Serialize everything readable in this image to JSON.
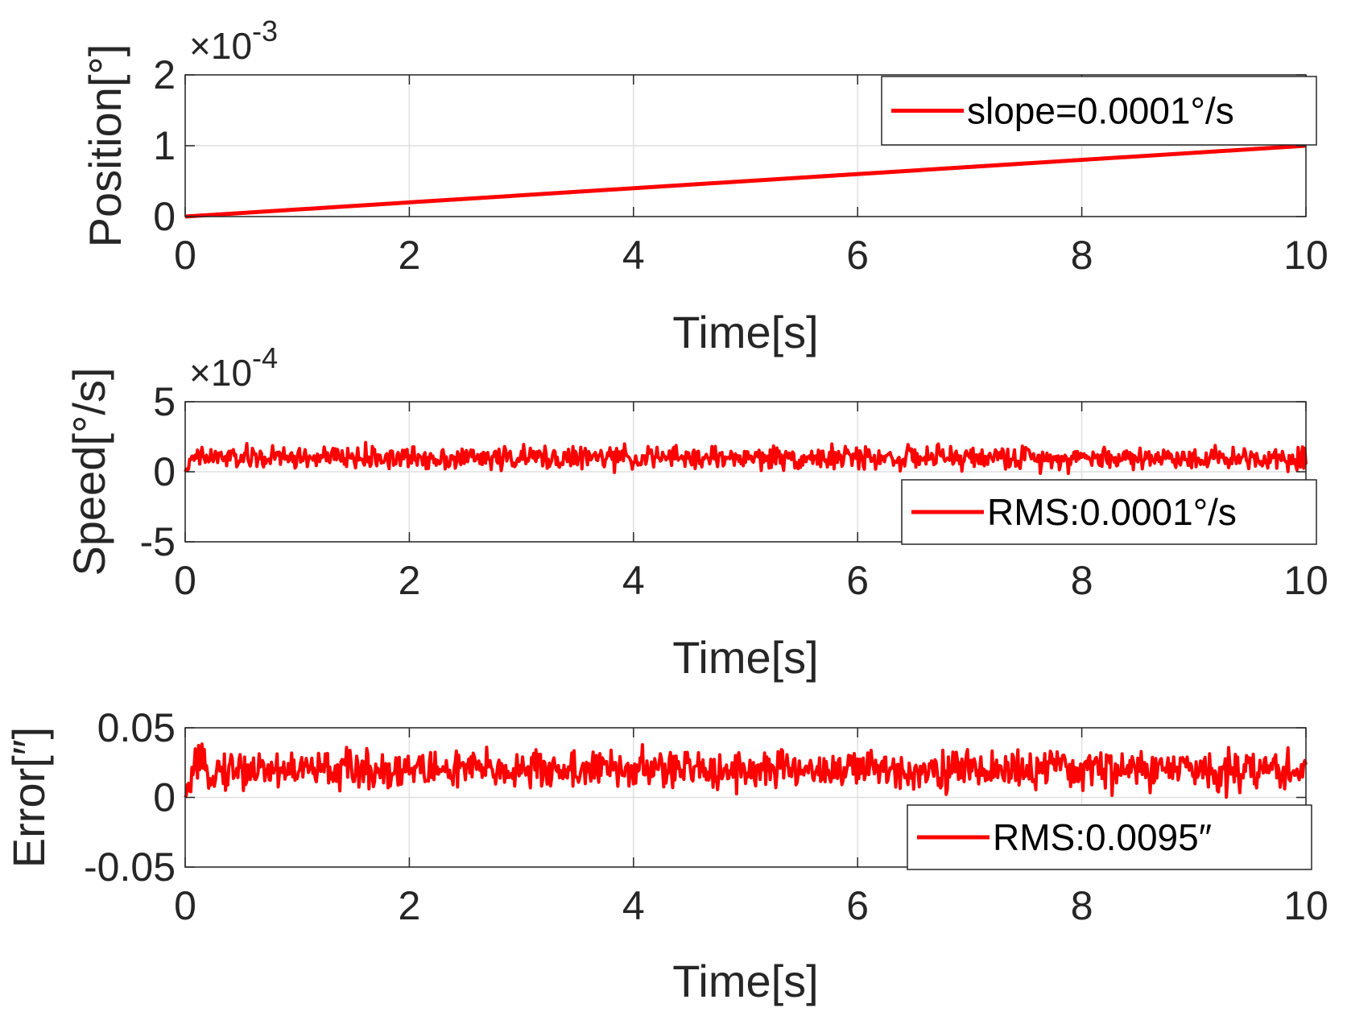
{
  "colors": {
    "series": "#ff0000",
    "axis": "#262626",
    "grid": "#dfdfdf",
    "legend_border": "#262626"
  },
  "chart_data": [
    {
      "type": "line",
      "xlabel": "Time[s]",
      "ylabel": "Position[°]",
      "xlim": [
        0,
        10
      ],
      "ylim": [
        0,
        2
      ],
      "xticks": [
        "0",
        "2",
        "4",
        "6",
        "8",
        "10"
      ],
      "yticks": [
        "0",
        "1",
        "2"
      ],
      "exponent": {
        "base": "×10",
        "power": "-3"
      },
      "grid": true,
      "legend": {
        "position": "top-right",
        "entries": [
          "slope=0.0001°/s"
        ]
      },
      "series": [
        {
          "name": "slope=0.0001°/s",
          "x": [
            0,
            10
          ],
          "y": [
            0,
            1
          ]
        }
      ]
    },
    {
      "type": "line",
      "xlabel": "Time[s]",
      "ylabel": "Speed[°/s]",
      "xlim": [
        0,
        10
      ],
      "ylim": [
        -5,
        5
      ],
      "xticks": [
        "0",
        "2",
        "4",
        "6",
        "8",
        "10"
      ],
      "yticks": [
        "-5",
        "0",
        "5"
      ],
      "exponent": {
        "base": "×10",
        "power": "-4"
      },
      "grid": true,
      "legend": {
        "position": "bottom-right",
        "entries": [
          "RMS:0.0001°/s"
        ]
      },
      "series": [
        {
          "name": "RMS:0.0001°/s",
          "noise": {
            "mean": 1,
            "amplitude": 0.75,
            "min": -1.0,
            "max": 2.8,
            "samples": 1000
          }
        }
      ]
    },
    {
      "type": "line",
      "xlabel": "Time[s]",
      "ylabel": "Error[″]",
      "xlim": [
        0,
        10
      ],
      "ylim": [
        -0.05,
        0.05
      ],
      "xticks": [
        "0",
        "2",
        "4",
        "6",
        "8",
        "10"
      ],
      "yticks": [
        "-0.05",
        "0",
        "0.05"
      ],
      "grid": true,
      "legend": {
        "position": "bottom-right",
        "entries": [
          "RMS:0.0095″"
        ]
      },
      "series": [
        {
          "name": "RMS:0.0095″",
          "noise": {
            "mean": 0.02,
            "amplitude": 0.013,
            "min": -0.01,
            "max": 0.045,
            "samples": 1000
          }
        }
      ]
    }
  ]
}
